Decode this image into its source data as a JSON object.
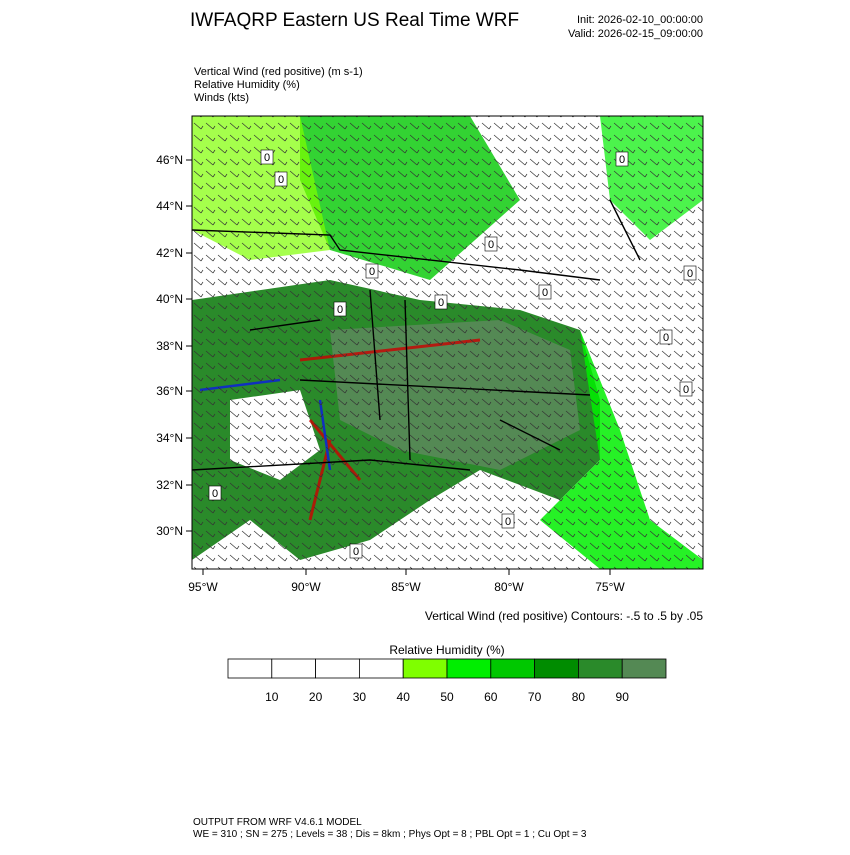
{
  "header": {
    "title": "IWFAQRP Eastern US Real Time WRF",
    "init": "Init: 2026-02-10_00:00:00",
    "valid": "Valid: 2026-02-15_09:00:00"
  },
  "fields": [
    "Vertical Wind (red positive)   (m s-1)",
    "Relative Humidity   (%)",
    "Winds   (kts)"
  ],
  "map": {
    "lat_labels": [
      "46°N",
      "44°N",
      "42°N",
      "40°N",
      "38°N",
      "36°N",
      "34°N",
      "32°N",
      "30°N"
    ],
    "lon_labels": [
      "95°W",
      "90°W",
      "85°W",
      "80°W",
      "75°W"
    ],
    "contour_labels": [
      "0",
      "0",
      "0",
      "0",
      "0",
      "0",
      "0",
      "0",
      "0",
      "0",
      "0",
      "0",
      "0",
      "0"
    ],
    "contour_info": "Vertical Wind (red positive) Contours: -.5 to .5 by .05"
  },
  "colorbar": {
    "title": "Relative Humidity   (%)",
    "labels": [
      10,
      20,
      30,
      40,
      50,
      60,
      70,
      80,
      90
    ],
    "colors": [
      "#ffffff",
      "#ffffff",
      "#ffffff",
      "#ffffff",
      "#7fff00",
      "#00ee00",
      "#00c800",
      "#008c00",
      "#2a8a2a",
      "#548954"
    ]
  },
  "footer": {
    "line1": "OUTPUT FROM WRF V4.6.1 MODEL",
    "line2": "WE = 310 ; SN = 275 ; Levels = 38 ; Dis = 8km ; Phys Opt = 8 ; PBL Opt = 1 ; Cu Opt = 3"
  }
}
